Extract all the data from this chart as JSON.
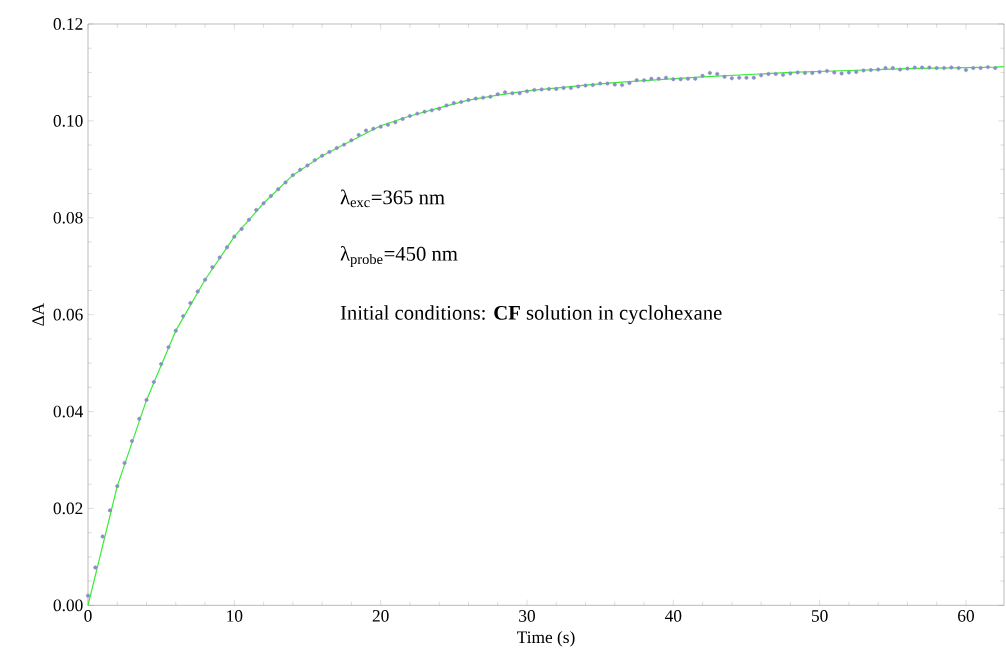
{
  "chart_data": {
    "type": "scatter",
    "xlabel": "Time (s)",
    "ylabel": "ΔA",
    "xlim": [
      0,
      62.6
    ],
    "ylim": [
      0,
      0.12
    ],
    "xticks": [
      0,
      10,
      20,
      30,
      40,
      50,
      60
    ],
    "yticks": [
      {
        "value": 0,
        "label": "0.00"
      },
      {
        "value": 0.02,
        "label": "0.02"
      },
      {
        "value": 0.04,
        "label": "0.04"
      },
      {
        "value": 0.06,
        "label": "0.06"
      },
      {
        "value": 0.08,
        "label": "0.08"
      },
      {
        "value": 0.1,
        "label": "0.10"
      },
      {
        "value": 0.12,
        "label": "0.12"
      }
    ],
    "grid": false,
    "annotations": [
      "λ$_{exc}$=365 nm",
      "λ$_{probe}$=450 nm",
      "Initial conditions: **CF** solution in cyclohexane"
    ],
    "series": [
      {
        "marker": "circle",
        "color": "#8c8cc8",
        "x": [
          0,
          0.5,
          1,
          1.5,
          2,
          2.5,
          3,
          3.5,
          4,
          4.5,
          5,
          5.5,
          6,
          6.5,
          7,
          7.5,
          8,
          8.5,
          9,
          9.5,
          10,
          10.5,
          11,
          11.5,
          12,
          12.5,
          13,
          13.5,
          14,
          14.5,
          15,
          15.5,
          16,
          16.5,
          17,
          17.5,
          18,
          18.5,
          19,
          19.5,
          20,
          20.5,
          21,
          21.5,
          22,
          22.5,
          23,
          23.5,
          24,
          24.5,
          25,
          25.5,
          26,
          26.5,
          27,
          27.5,
          28,
          28.5,
          29,
          29.5,
          30,
          30.5,
          31,
          31.5,
          32,
          32.5,
          33,
          33.5,
          34,
          34.5,
          35,
          35.5,
          36,
          36.5,
          37,
          37.5,
          38,
          38.5,
          39,
          39.5,
          40,
          40.5,
          41,
          41.5,
          42,
          42.5,
          43,
          43.5,
          44,
          44.5,
          45,
          45.5,
          46,
          46.5,
          47,
          47.5,
          48,
          48.5,
          49,
          49.5,
          50,
          50.5,
          51,
          51.5,
          52,
          52.5,
          53,
          53.5,
          54,
          54.5,
          55,
          55.5,
          56,
          56.5,
          57,
          57.5,
          58,
          58.5,
          59,
          59.5,
          60,
          60.5,
          61,
          61.5,
          62
        ],
        "values": [
          0.002,
          0.0078,
          0.0142,
          0.0196,
          0.0246,
          0.0294,
          0.0339,
          0.0385,
          0.0424,
          0.0461,
          0.0498,
          0.0533,
          0.0567,
          0.0597,
          0.0624,
          0.0648,
          0.0672,
          0.0698,
          0.0718,
          0.0739,
          0.0761,
          0.0777,
          0.0796,
          0.0816,
          0.083,
          0.0845,
          0.0859,
          0.0873,
          0.0888,
          0.0899,
          0.0908,
          0.0919,
          0.0928,
          0.0936,
          0.0944,
          0.0951,
          0.096,
          0.0971,
          0.098,
          0.0984,
          0.0988,
          0.0992,
          0.0997,
          0.1004,
          0.101,
          0.1015,
          0.1019,
          0.1022,
          0.1025,
          0.1032,
          0.1037,
          0.1039,
          0.1043,
          0.1046,
          0.1048,
          0.105,
          0.1055,
          0.1059,
          0.1057,
          0.1057,
          0.1061,
          0.1064,
          0.1065,
          0.1066,
          0.1066,
          0.1068,
          0.1068,
          0.1071,
          0.1073,
          0.1074,
          0.1077,
          0.1077,
          0.1075,
          0.1074,
          0.1078,
          0.1084,
          0.1084,
          0.1087,
          0.1087,
          0.1089,
          0.1086,
          0.1086,
          0.1087,
          0.1087,
          0.1093,
          0.1099,
          0.1097,
          0.1091,
          0.1088,
          0.1089,
          0.1089,
          0.1089,
          0.1094,
          0.1097,
          0.1097,
          0.1095,
          0.1098,
          0.11,
          0.1099,
          0.1099,
          0.1101,
          0.1103,
          0.11,
          0.1098,
          0.11,
          0.1101,
          0.1104,
          0.1105,
          0.1106,
          0.1109,
          0.1109,
          0.1106,
          0.1108,
          0.111,
          0.111,
          0.111,
          0.1109,
          0.1109,
          0.111,
          0.1109,
          0.1105,
          0.1109,
          0.1109,
          0.1111,
          0.1109
        ]
      },
      {
        "type": "line",
        "marker": "none",
        "line_style": "solid",
        "color": "#33ee33",
        "x": [
          0,
          2,
          4,
          6,
          8,
          10,
          12,
          14,
          16,
          18,
          20,
          22,
          24,
          26,
          28,
          30,
          32,
          34,
          36,
          38,
          40,
          42,
          44,
          46,
          48,
          50,
          52,
          54,
          56,
          58,
          60,
          62,
          62.6
        ],
        "values": [
          0,
          0.0246,
          0.0424,
          0.0567,
          0.0672,
          0.0761,
          0.083,
          0.0888,
          0.0928,
          0.0959,
          0.099,
          0.101,
          0.1027,
          0.1043,
          0.1053,
          0.1062,
          0.1068,
          0.1074,
          0.1079,
          0.1083,
          0.1087,
          0.1091,
          0.1094,
          0.1097,
          0.11,
          0.1102,
          0.1104,
          0.1106,
          0.1108,
          0.1109,
          0.111,
          0.1111,
          0.1112
        ]
      }
    ]
  }
}
